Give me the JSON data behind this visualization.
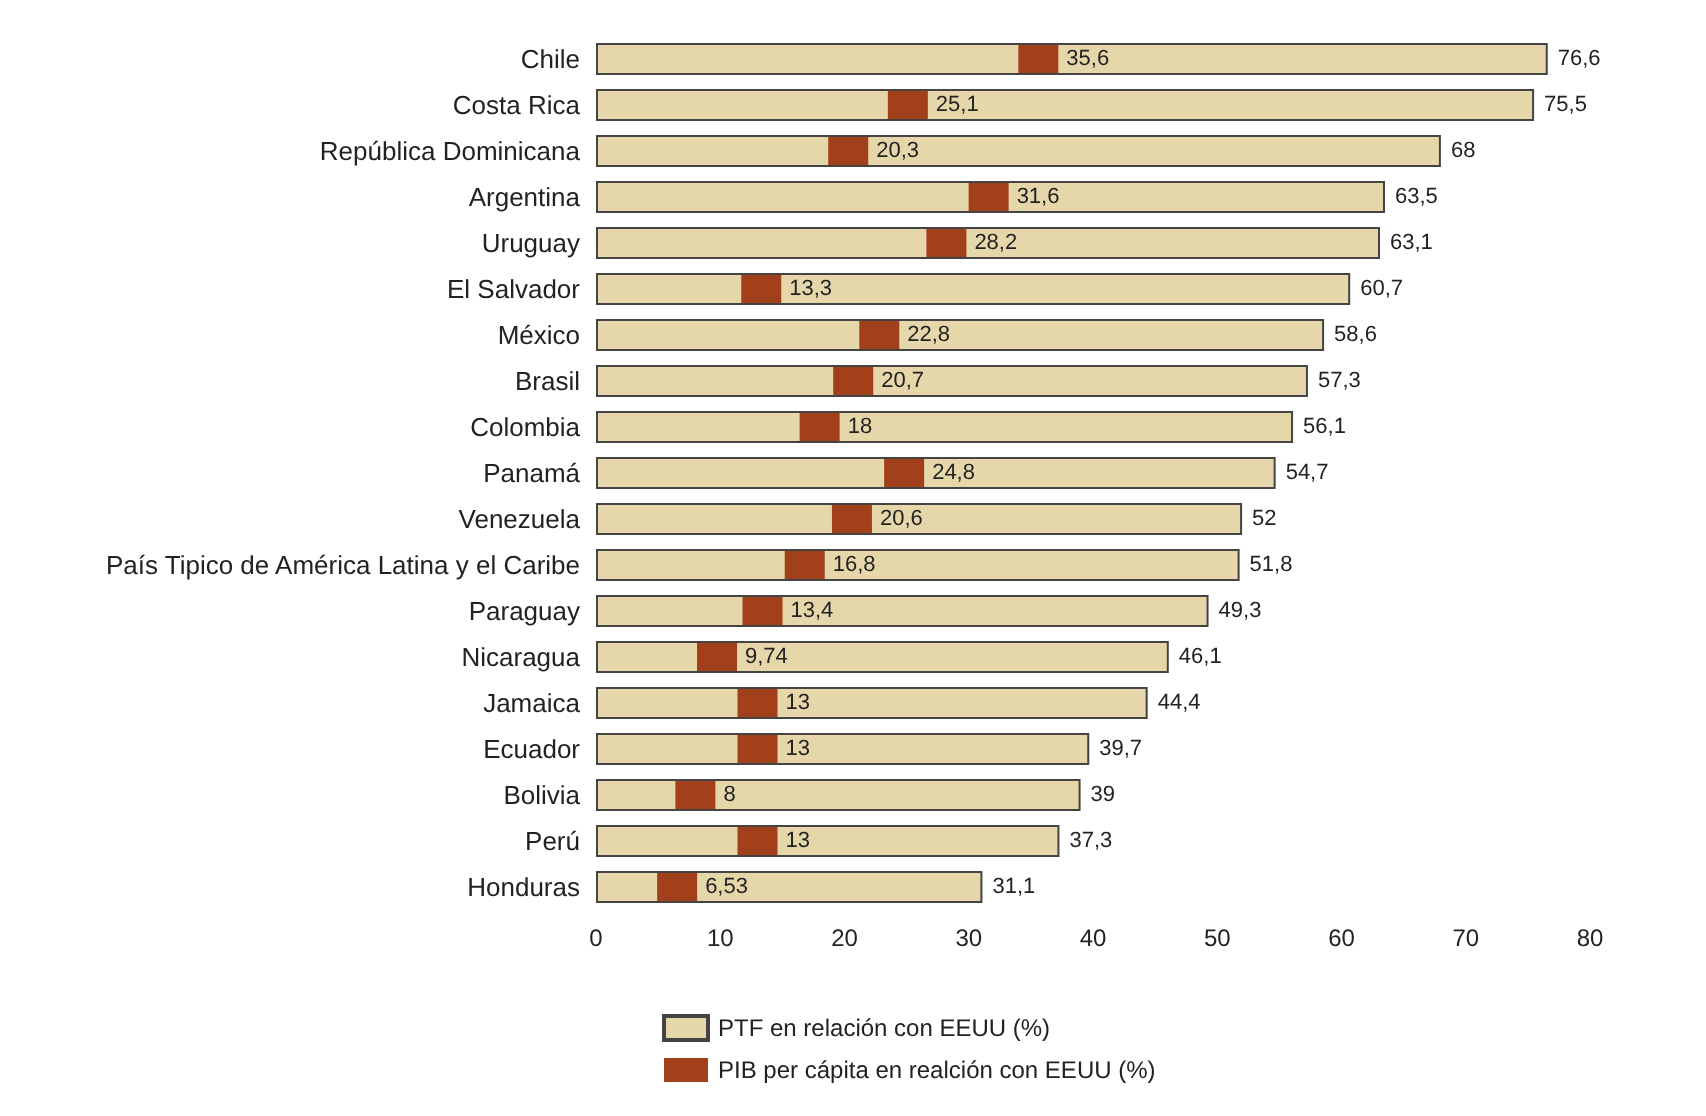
{
  "chart_data": {
    "type": "bar",
    "orientation": "horizontal",
    "categories": [
      "Chile",
      "Costa Rica",
      "República Dominicana",
      "Argentina",
      "Uruguay",
      "El Salvador",
      "México",
      "Brasil",
      "Colombia",
      "Panamá",
      "Venezuela",
      "País Tipico de América Latina y el Caribe",
      "Paraguay",
      "Nicaragua",
      "Jamaica",
      "Ecuador",
      "Bolivia",
      "Perú",
      "Honduras"
    ],
    "series": [
      {
        "name": "PTF en relación con EEUU (%)",
        "type": "bar",
        "color": "#e6d7aa",
        "values": [
          76.6,
          75.5,
          68,
          63.5,
          63.1,
          60.7,
          58.6,
          57.3,
          56.1,
          54.7,
          52,
          51.8,
          49.3,
          46.1,
          44.4,
          39.7,
          39,
          37.3,
          31.1
        ],
        "value_labels": [
          "76,6",
          "75,5",
          "68",
          "63,5",
          "63,1",
          "60,7",
          "58,6",
          "57,3",
          "56,1",
          "54,7",
          "52",
          "51,8",
          "49,3",
          "46,1",
          "44,4",
          "39,7",
          "39",
          "37,3",
          "31,1"
        ]
      },
      {
        "name": "PIB per cápita en realción con EEUU (%)",
        "type": "scatter",
        "marker": "square",
        "color": "#a2401b",
        "values": [
          35.6,
          25.1,
          20.3,
          31.6,
          28.2,
          13.3,
          22.8,
          20.7,
          18,
          24.8,
          20.6,
          16.8,
          13.4,
          9.74,
          13,
          13,
          8,
          13,
          6.53
        ],
        "value_labels": [
          "35,6",
          "25,1",
          "20,3",
          "31,6",
          "28,2",
          "13,3",
          "22,8",
          "20,7",
          "18",
          "24,8",
          "20,6",
          "16,8",
          "13,4",
          "9,74",
          "13",
          "13",
          "8",
          "13",
          "6,53"
        ]
      }
    ],
    "xlim": [
      0,
      80
    ],
    "xticks": [
      0,
      10,
      20,
      30,
      40,
      50,
      60,
      70,
      80
    ],
    "grid": false,
    "legend": "bottom"
  }
}
